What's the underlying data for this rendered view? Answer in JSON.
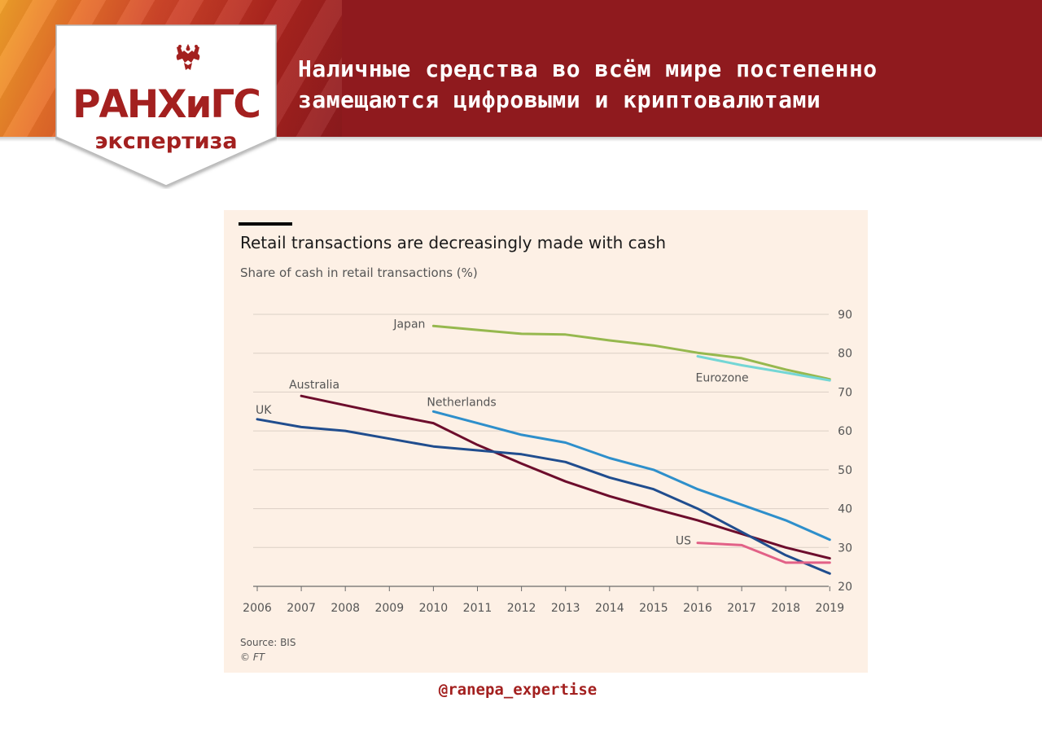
{
  "header": {
    "logo_text": "РАНХиГС",
    "logo_sub": "экспертиза",
    "headline_line1": "Наличные средства во всём мире постепенно",
    "headline_line2": "замещаются цифровыми и криптовалютами",
    "emblem_icon": "double-headed-eagle-icon"
  },
  "footer": {
    "handle": "@ranepa_expertise"
  },
  "chart_data": {
    "type": "line",
    "title": "Retail transactions are decreasingly made with cash",
    "subtitle": "Share of cash in retail transactions (%)",
    "source": "Source: BIS",
    "copyright": "© FT",
    "x": [
      2006,
      2007,
      2008,
      2009,
      2010,
      2011,
      2012,
      2013,
      2014,
      2015,
      2016,
      2017,
      2018,
      2019
    ],
    "ylim": [
      20,
      90
    ],
    "yticks": [
      20,
      30,
      40,
      50,
      60,
      70,
      80,
      90
    ],
    "grid": true,
    "y_axis_side": "right",
    "series": [
      {
        "name": "Japan",
        "color": "#96b84e",
        "points": [
          [
            2010,
            87
          ],
          [
            2011,
            86
          ],
          [
            2012,
            85
          ],
          [
            2013,
            84.8
          ],
          [
            2014,
            83.3
          ],
          [
            2015,
            82
          ],
          [
            2016,
            80.1
          ],
          [
            2017,
            78.7
          ],
          [
            2018,
            75.8
          ],
          [
            2019,
            73.3
          ]
        ]
      },
      {
        "name": "Eurozone",
        "color": "#74d6d5",
        "points": [
          [
            2016,
            79.2
          ],
          [
            2017,
            76.9
          ],
          [
            2018,
            75
          ],
          [
            2019,
            73
          ]
        ]
      },
      {
        "name": "Australia",
        "color": "#6d0d2c",
        "points": [
          [
            2007,
            69
          ],
          [
            2008,
            66.6
          ],
          [
            2009,
            64.2
          ],
          [
            2010,
            62
          ],
          [
            2011,
            56.4
          ],
          [
            2012,
            51.6
          ],
          [
            2013,
            47
          ],
          [
            2014,
            43.2
          ],
          [
            2015,
            40
          ],
          [
            2016,
            37
          ],
          [
            2017,
            33.5
          ],
          [
            2018,
            30
          ],
          [
            2019,
            27.2
          ]
        ]
      },
      {
        "name": "UK",
        "color": "#204d8e",
        "points": [
          [
            2006,
            63
          ],
          [
            2007,
            61
          ],
          [
            2008,
            60
          ],
          [
            2009,
            58
          ],
          [
            2010,
            56
          ],
          [
            2011,
            55
          ],
          [
            2012,
            54
          ],
          [
            2013,
            52
          ],
          [
            2014,
            48
          ],
          [
            2015,
            45
          ],
          [
            2016,
            40
          ],
          [
            2017,
            34
          ],
          [
            2018,
            28
          ],
          [
            2019,
            23.3
          ]
        ]
      },
      {
        "name": "Netherlands",
        "color": "#2e8fcb",
        "points": [
          [
            2010,
            65
          ],
          [
            2011,
            62
          ],
          [
            2012,
            59
          ],
          [
            2013,
            57
          ],
          [
            2014,
            53
          ],
          [
            2015,
            50
          ],
          [
            2016,
            45
          ],
          [
            2017,
            41
          ],
          [
            2018,
            37
          ],
          [
            2019,
            32
          ]
        ]
      },
      {
        "name": "US",
        "color": "#e26187",
        "points": [
          [
            2016,
            31.2
          ],
          [
            2017,
            30.6
          ],
          [
            2018,
            26.1
          ],
          [
            2019,
            26.1
          ]
        ]
      }
    ]
  }
}
